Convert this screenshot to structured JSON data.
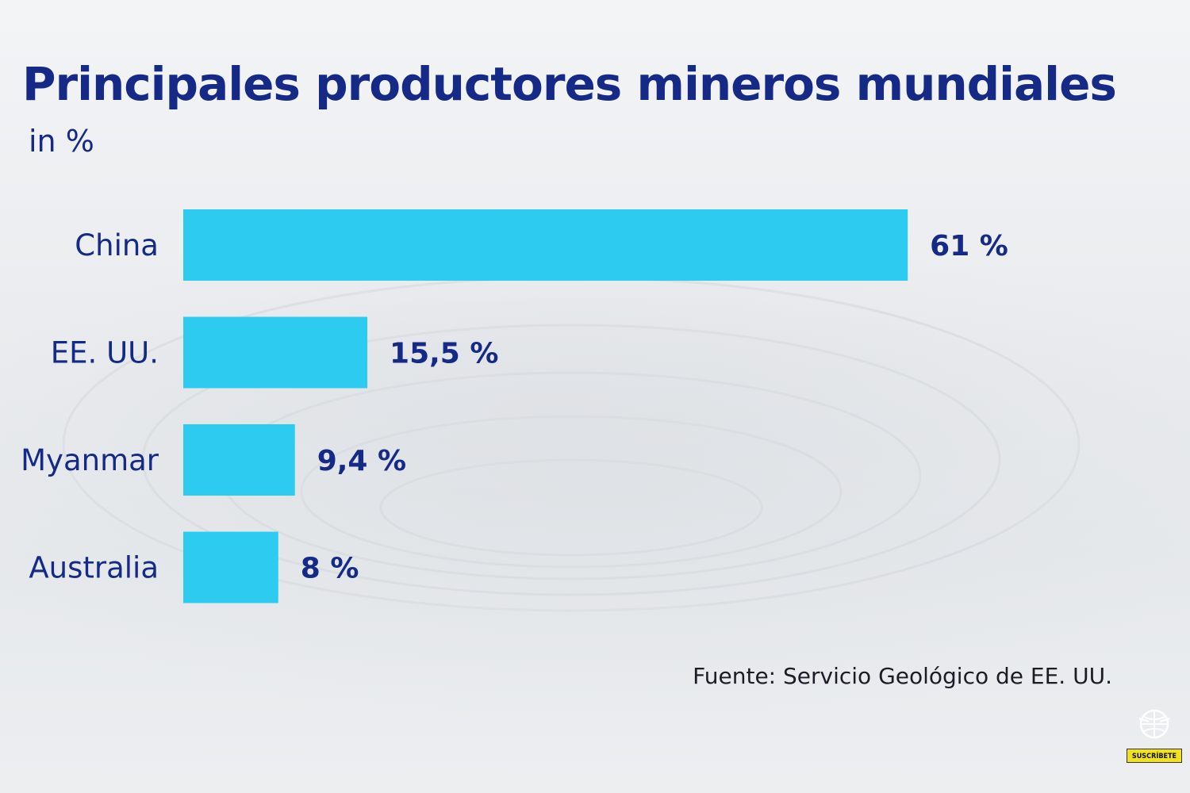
{
  "title": "Principales productores mineros mundiales",
  "subtitle": "in %",
  "source": "Fuente:  Servicio Geológico de EE. UU.",
  "badge": {
    "label": "SUSCRÍBETE"
  },
  "colors": {
    "bar": "#2ecbf0",
    "title": "#152a86",
    "label": "#152a86",
    "value": "#152a86"
  },
  "chart_data": {
    "type": "bar",
    "orientation": "horizontal",
    "categories": [
      "China",
      "EE. UU.",
      "Myanmar",
      "Australia"
    ],
    "values": [
      61,
      15.5,
      9.4,
      8
    ],
    "value_labels": [
      "61 %",
      "15,5 %",
      "9,4 %",
      "8 %"
    ],
    "ylabel": "in %",
    "grid": false,
    "legend": "none"
  }
}
